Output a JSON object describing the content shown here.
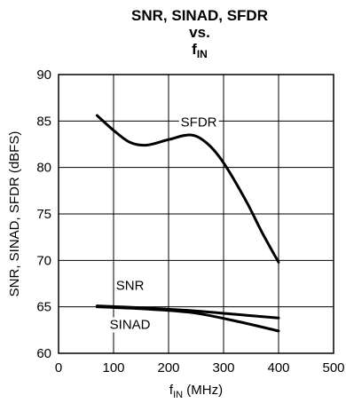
{
  "chart_data": {
    "type": "line",
    "title_line1": "SNR, SINAD, SFDR",
    "title_line2": "vs.",
    "title_line3_main": "f",
    "title_line3_sub": "IN",
    "xlabel_main": "f",
    "xlabel_sub": "IN",
    "xlabel_unit": " (MHz)",
    "ylabel": "SNR, SINAD, SFDR (dBFS)",
    "xlim": [
      0,
      500
    ],
    "ylim": [
      60,
      90
    ],
    "xticks": [
      "0",
      "100",
      "200",
      "300",
      "400",
      "500"
    ],
    "yticks": [
      "60",
      "65",
      "70",
      "75",
      "80",
      "85",
      "90"
    ],
    "grid": true,
    "series": [
      {
        "name": "SFDR",
        "x": [
          70,
          100,
          130,
          160,
          200,
          240,
          270,
          300,
          340,
          370,
          400
        ],
        "y": [
          85.6,
          84.0,
          82.7,
          82.4,
          83.0,
          83.5,
          82.6,
          80.5,
          76.5,
          73.0,
          69.8
        ]
      },
      {
        "name": "SNR",
        "x": [
          70,
          150,
          240,
          320,
          400
        ],
        "y": [
          65.1,
          64.9,
          64.6,
          64.2,
          63.8
        ]
      },
      {
        "name": "SINAD",
        "x": [
          70,
          150,
          240,
          320,
          400
        ],
        "y": [
          65.0,
          64.8,
          64.4,
          63.5,
          62.4
        ]
      }
    ],
    "annotations": [
      {
        "text": "SFDR",
        "x": 255,
        "y": 84.9
      },
      {
        "text": "SNR",
        "x": 130,
        "y": 67.3
      },
      {
        "text": "SINAD",
        "x": 130,
        "y": 63.1
      }
    ]
  }
}
